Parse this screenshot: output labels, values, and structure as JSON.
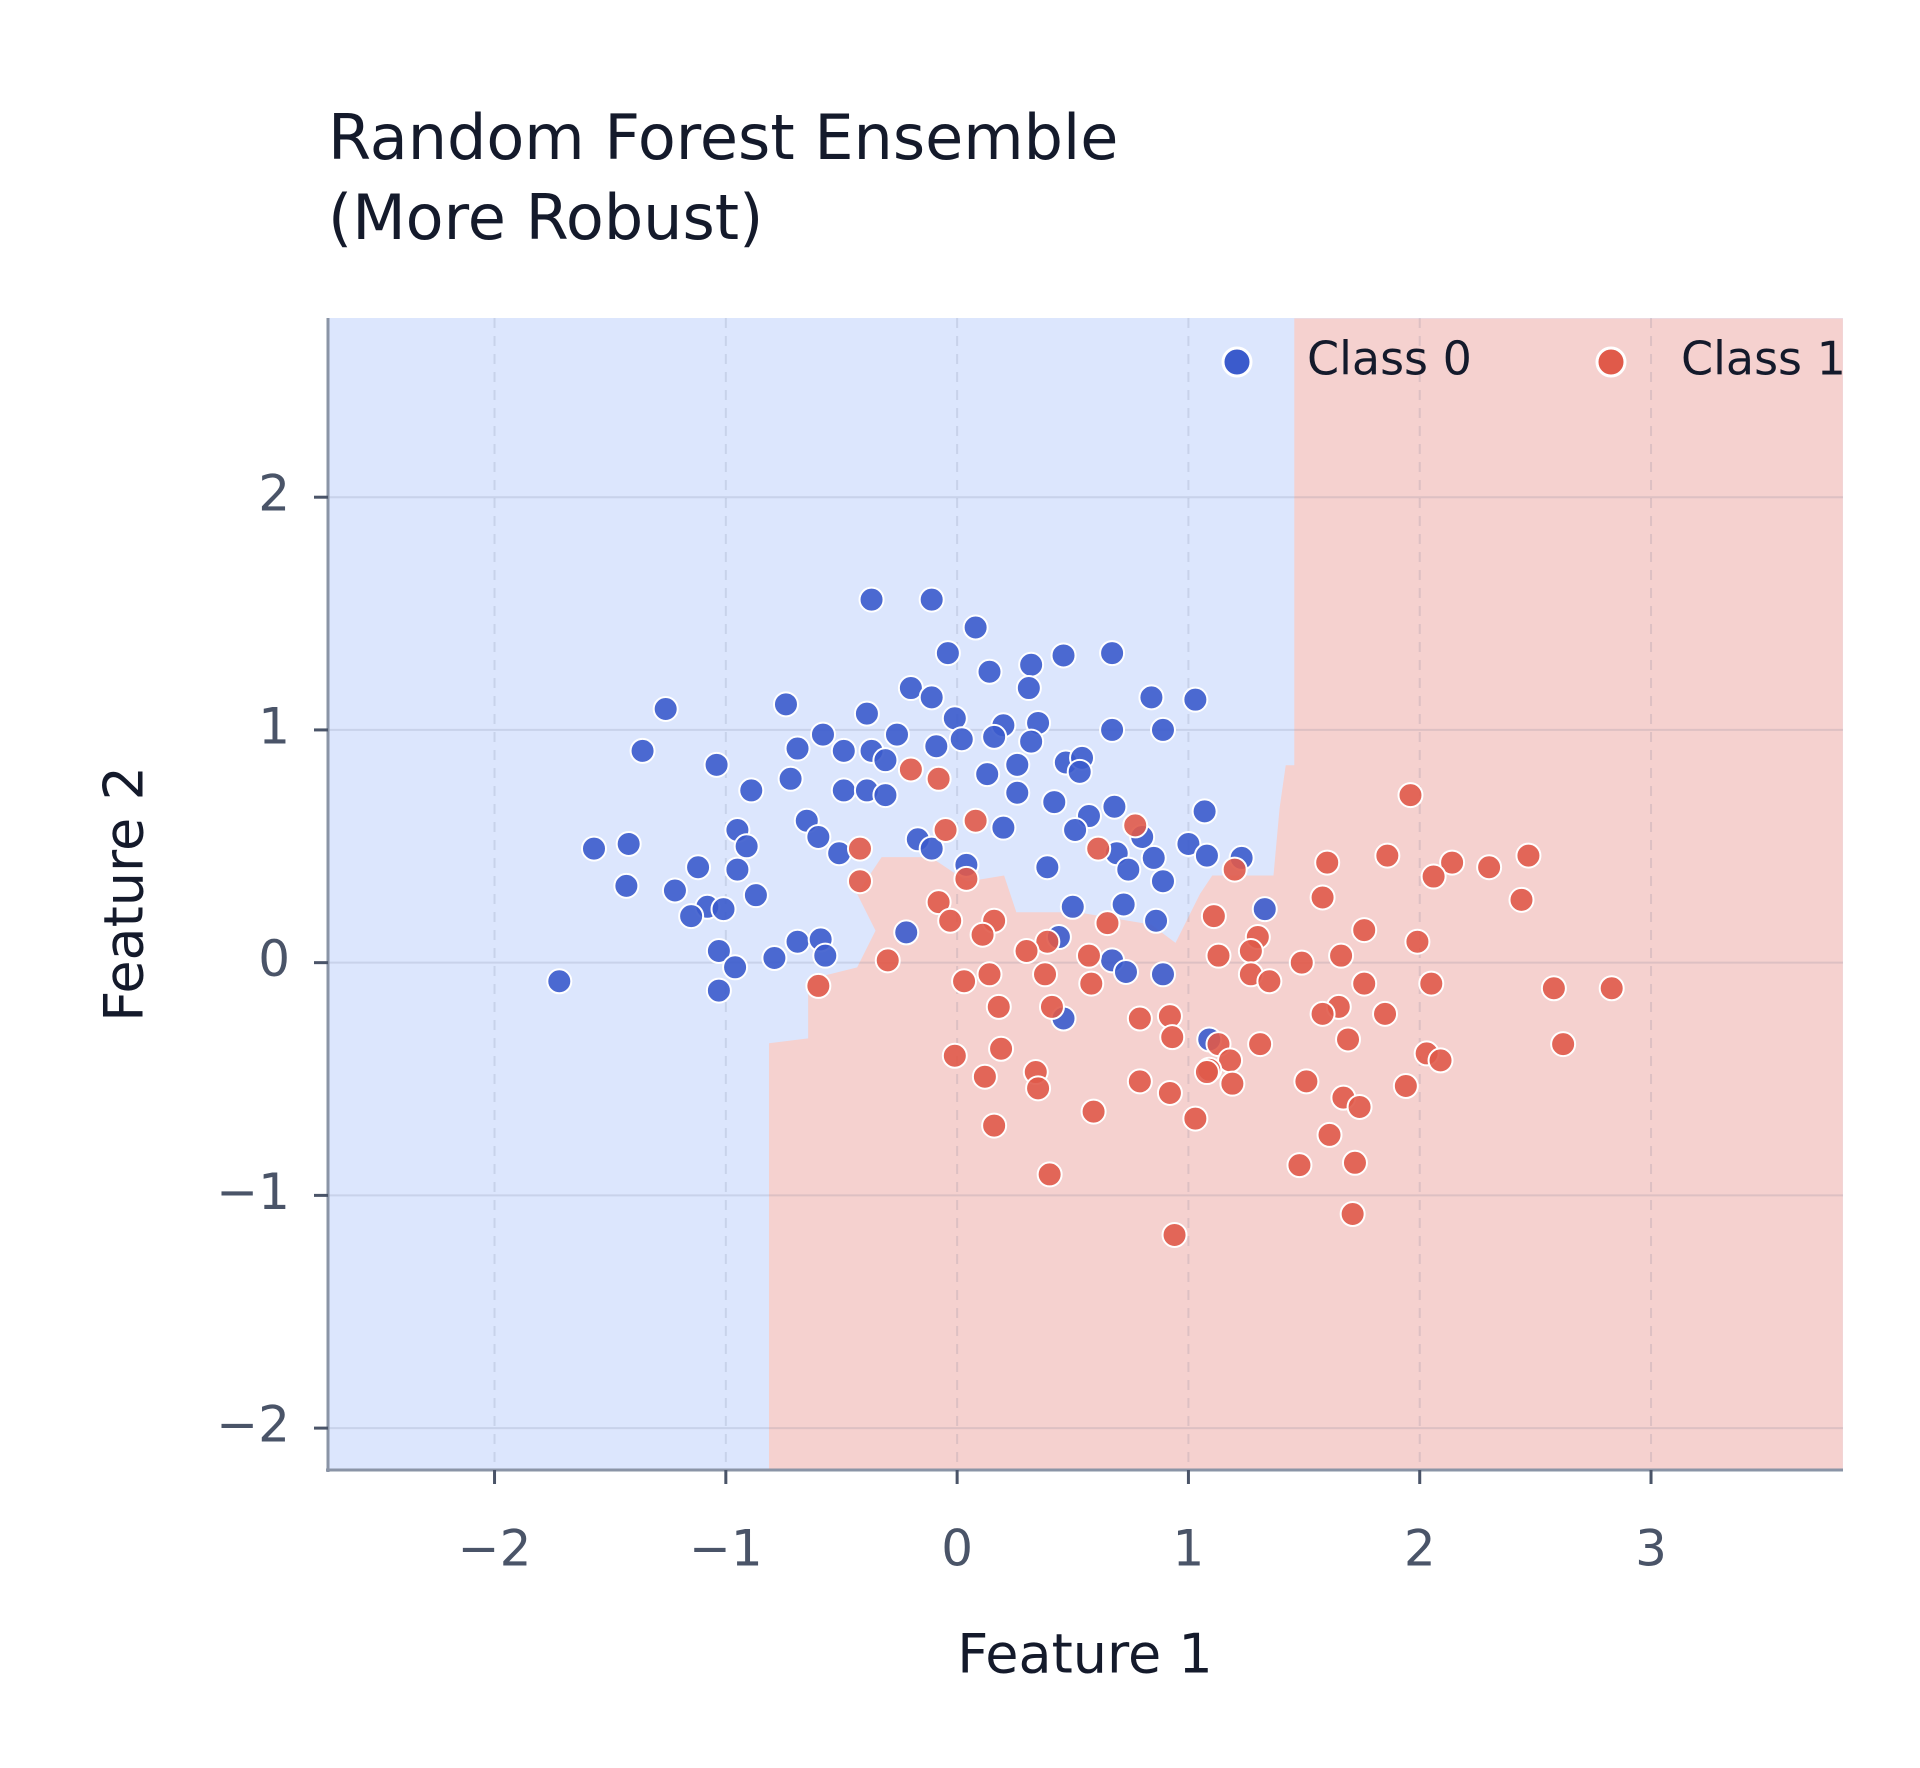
{
  "chart_data": {
    "type": "scatter",
    "title": "Random Forest Ensemble\n(More Robust)",
    "x_label": "Feature 1",
    "y_label": "Feature 2",
    "xlim": [
      -2.72,
      3.83
    ],
    "ylim": [
      -2.18,
      2.77
    ],
    "xticks": [
      {
        "value": -2,
        "label": "−2"
      },
      {
        "value": -1,
        "label": "−1"
      },
      0,
      1,
      2,
      3
    ],
    "yticks": [
      {
        "value": -2,
        "label": "−2"
      },
      {
        "value": -1,
        "label": "−1"
      },
      0,
      1,
      2
    ],
    "grid": true,
    "legend": "upper right",
    "series": [
      {
        "name": "Class 0",
        "color": "#3b5bcc",
        "x": [
          -0.37,
          -0.11,
          0.08,
          -0.04,
          0.32,
          0.46,
          0.67,
          0.14,
          0.31,
          -0.2,
          -0.11,
          1.03,
          0.84,
          -1.26,
          -0.74,
          -0.39,
          -0.01,
          0.2,
          0.35,
          0.67,
          0.89,
          -0.58,
          -0.26,
          0.16,
          0.02,
          0.32,
          -1.36,
          -0.69,
          -0.49,
          -0.37,
          -0.09,
          -0.31,
          -1.04,
          0.26,
          0.47,
          0.54,
          0.13,
          -0.72,
          -0.89,
          0.53,
          -0.49,
          -0.39,
          -0.31,
          0.26,
          0.42,
          0.68,
          1.07,
          0.57,
          -0.65,
          0.2,
          -0.95,
          0.51,
          -0.6,
          -0.17,
          0.8,
          1.0,
          -1.57,
          -1.42,
          -0.91,
          -0.51,
          -0.11,
          0.69,
          0.85,
          1.08,
          1.23,
          0.04,
          -0.95,
          -1.12,
          0.39,
          0.74,
          -1.43,
          0.89,
          -1.22,
          -0.87,
          -1.08,
          -1.01,
          0.5,
          0.72,
          1.33,
          -1.15,
          0.86,
          -0.22,
          -0.69,
          -0.59,
          0.44,
          -1.03,
          -0.57,
          -0.79,
          0.67,
          -0.96,
          0.73,
          0.89,
          -1.72,
          -1.03,
          0.46,
          1.09
        ],
        "y": [
          1.56,
          1.56,
          1.44,
          1.33,
          1.28,
          1.32,
          1.33,
          1.25,
          1.18,
          1.18,
          1.14,
          1.13,
          1.14,
          1.09,
          1.11,
          1.07,
          1.05,
          1.02,
          1.03,
          1.0,
          1.0,
          0.98,
          0.98,
          0.97,
          0.96,
          0.95,
          0.91,
          0.92,
          0.91,
          0.91,
          0.93,
          0.87,
          0.85,
          0.85,
          0.86,
          0.88,
          0.81,
          0.79,
          0.74,
          0.82,
          0.74,
          0.74,
          0.72,
          0.73,
          0.69,
          0.67,
          0.65,
          0.63,
          0.61,
          0.58,
          0.57,
          0.57,
          0.54,
          0.53,
          0.54,
          0.51,
          0.49,
          0.51,
          0.5,
          0.47,
          0.49,
          0.47,
          0.45,
          0.46,
          0.45,
          0.42,
          0.4,
          0.41,
          0.41,
          0.4,
          0.33,
          0.35,
          0.31,
          0.29,
          0.24,
          0.23,
          0.24,
          0.25,
          0.23,
          0.2,
          0.18,
          0.13,
          0.09,
          0.1,
          0.11,
          0.05,
          0.03,
          0.02,
          0.01,
          -0.02,
          -0.04,
          -0.05,
          -0.08,
          -0.12,
          -0.24,
          -0.33
        ]
      },
      {
        "name": "Class 1",
        "color": "#e05a4a",
        "x": [
          1.96,
          -0.2,
          -0.08,
          0.77,
          0.08,
          -0.05,
          0.61,
          -0.42,
          1.86,
          2.47,
          1.6,
          2.14,
          2.3,
          1.2,
          2.06,
          -0.42,
          0.04,
          1.58,
          2.44,
          -0.08,
          1.11,
          -0.03,
          0.16,
          0.65,
          1.76,
          0.11,
          1.3,
          1.99,
          0.39,
          0.3,
          1.27,
          0.57,
          1.13,
          1.66,
          -0.3,
          1.49,
          0.38,
          0.14,
          1.27,
          1.35,
          0.03,
          0.58,
          1.76,
          2.05,
          -0.6,
          2.58,
          2.83,
          0.18,
          0.41,
          1.65,
          1.58,
          0.92,
          0.79,
          1.85,
          0.93,
          1.69,
          1.31,
          2.62,
          0.19,
          1.13,
          2.03,
          -0.01,
          2.09,
          1.18,
          1.09,
          0.34,
          1.08,
          0.12,
          0.79,
          1.51,
          1.19,
          1.94,
          0.35,
          0.92,
          1.67,
          1.74,
          0.59,
          1.03,
          0.16,
          1.61,
          1.48,
          1.72,
          0.4,
          1.71,
          0.94
        ],
        "y": [
          0.72,
          0.83,
          0.79,
          0.59,
          0.61,
          0.57,
          0.49,
          0.49,
          0.46,
          0.46,
          0.43,
          0.43,
          0.41,
          0.4,
          0.37,
          0.35,
          0.36,
          0.28,
          0.27,
          0.26,
          0.2,
          0.18,
          0.18,
          0.17,
          0.14,
          0.12,
          0.11,
          0.09,
          0.09,
          0.05,
          0.05,
          0.03,
          0.03,
          0.03,
          0.01,
          0.0,
          -0.05,
          -0.05,
          -0.05,
          -0.08,
          -0.08,
          -0.09,
          -0.09,
          -0.09,
          -0.1,
          -0.11,
          -0.11,
          -0.19,
          -0.19,
          -0.19,
          -0.22,
          -0.23,
          -0.24,
          -0.22,
          -0.32,
          -0.33,
          -0.35,
          -0.35,
          -0.37,
          -0.35,
          -0.39,
          -0.4,
          -0.42,
          -0.42,
          -0.46,
          -0.47,
          -0.47,
          -0.49,
          -0.51,
          -0.51,
          -0.52,
          -0.53,
          -0.54,
          -0.56,
          -0.58,
          -0.62,
          -0.64,
          -0.67,
          -0.7,
          -0.74,
          -0.87,
          -0.86,
          -0.91,
          -1.08,
          -1.17
        ]
      }
    ]
  }
}
